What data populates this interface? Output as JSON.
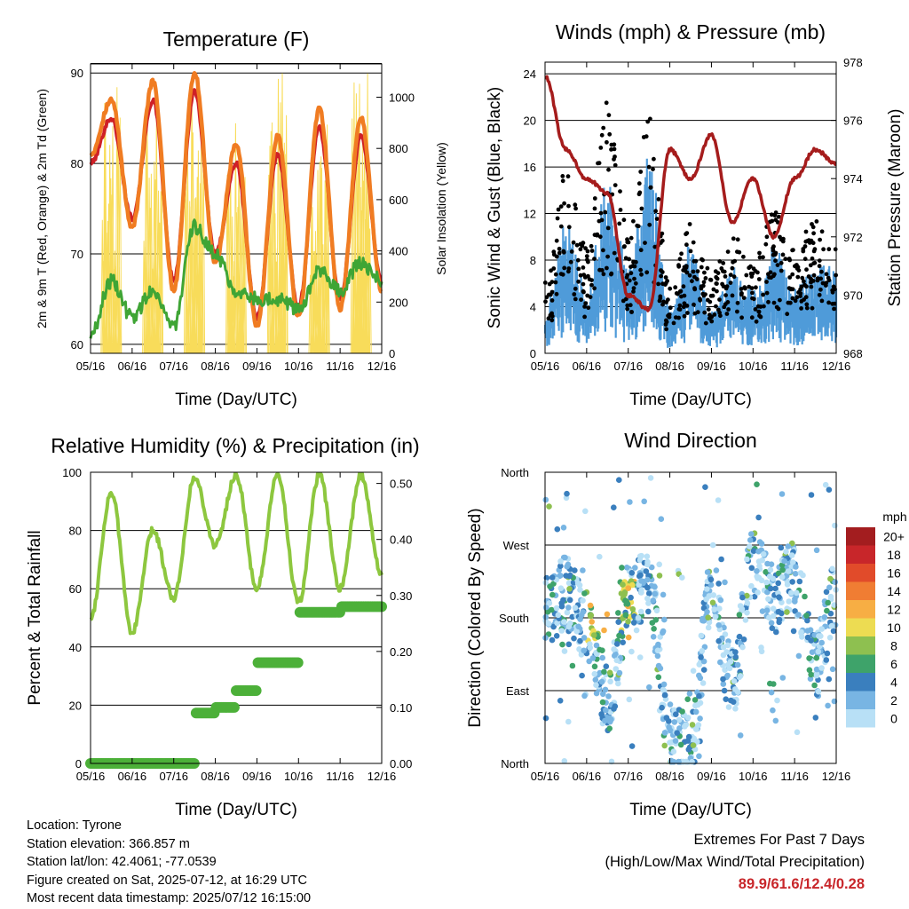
{
  "x_ticks": [
    "05/16",
    "06/16",
    "07/16",
    "08/16",
    "09/16",
    "10/16",
    "11/16",
    "12/16"
  ],
  "x_label": "Time (Day/UTC)",
  "colors": {
    "temp_2m": "#cf2027",
    "temp_9m": "#f07c22",
    "dewpoint": "#3fa535",
    "solar": "#f8dc5a",
    "wind": "#4f9bd9",
    "gust": "#000000",
    "pressure": "#a51c1c",
    "rh": "#8dc73f",
    "precip": "#4cb039"
  },
  "chart_data": [
    {
      "type": "line",
      "title": "Temperature (F)",
      "ylabel": "2m & 9m T (Red, Orange) & 2m Td (Green)",
      "ylabel_right": "Solar Insolation (Yellow)",
      "ylim": [
        59,
        91
      ],
      "yticks": [
        60,
        70,
        80,
        90
      ],
      "ylim_right": [
        0,
        1130
      ],
      "yticks_right": [
        0,
        200,
        400,
        600,
        800,
        1000
      ],
      "x": [
        0,
        0.5,
        1,
        1.5,
        2,
        2.5,
        3,
        3.5,
        4,
        4.5,
        5,
        5.5,
        6,
        6.5,
        7
      ],
      "series": [
        {
          "values": [
            81,
            87,
            73,
            89,
            66,
            90,
            69,
            82,
            62,
            83,
            63,
            86,
            64,
            85,
            66
          ]
        },
        {
          "values": [
            80,
            85,
            74,
            87,
            67,
            88,
            70,
            80,
            63,
            81,
            64,
            84,
            65,
            83,
            67
          ]
        },
        {
          "values": [
            61,
            67,
            63,
            66,
            62,
            73,
            70,
            66,
            65,
            65,
            64,
            68,
            66,
            69,
            67
          ]
        }
      ],
      "grid": true
    },
    {
      "type": "scatter",
      "title": "Winds (mph) & Pressure (mb)",
      "ylabel": "Sonic Wind & Gust (Blue, Black)",
      "ylabel_right": "Station Pressure (Maroon)",
      "ylim": [
        0,
        25
      ],
      "yticks": [
        0,
        4,
        8,
        12,
        16,
        20,
        24
      ],
      "ylim_right": [
        968,
        978
      ],
      "yticks_right": [
        968,
        970,
        972,
        974,
        976,
        978
      ],
      "x": [
        0,
        0.5,
        1,
        1.5,
        2,
        2.5,
        3,
        3.5,
        4,
        4.5,
        5,
        5.5,
        6,
        6.5,
        7
      ],
      "series": [
        {
          "values": [
            2,
            6,
            3,
            8,
            4,
            9,
            2,
            5,
            2,
            4,
            3,
            5,
            3,
            4,
            4
          ]
        },
        {
          "values": [
            6,
            14,
            8,
            19,
            9,
            18,
            5,
            10,
            6,
            9,
            7,
            11,
            8,
            10,
            9
          ]
        },
        {
          "values": [
            977.5,
            975,
            974,
            973.5,
            970,
            969.5,
            975,
            974,
            975.5,
            972.5,
            974,
            972,
            974,
            975,
            974.5
          ]
        }
      ],
      "grid": true
    },
    {
      "type": "line",
      "title": "Relative Humidity (%) & Precipitation (in)",
      "ylabel": "Percent & Total Rainfall",
      "ylim": [
        0,
        100
      ],
      "yticks": [
        0,
        20,
        40,
        60,
        80,
        100
      ],
      "ylim_right": [
        0,
        0.52
      ],
      "yticks_right": [
        "0.00",
        "0.10",
        "0.20",
        "0.30",
        "0.40",
        "0.50"
      ],
      "x": [
        0,
        0.5,
        1,
        1.5,
        2,
        2.5,
        3,
        3.5,
        4,
        4.5,
        5,
        5.5,
        6,
        6.5,
        7
      ],
      "series": [
        {
          "values": [
            50,
            93,
            45,
            80,
            57,
            98,
            75,
            99,
            60,
            99,
            55,
            99,
            60,
            99,
            65
          ]
        },
        {
          "values": [
            0,
            0,
            0,
            0,
            0,
            0.09,
            0.1,
            0.13,
            0.18,
            0.18,
            0.27,
            0.27,
            0.28,
            0.28,
            0.28
          ]
        }
      ],
      "grid": true
    },
    {
      "type": "scatter",
      "title": "Wind Direction",
      "ylabel": "Direction (Colored By Speed)",
      "ytick_labels": [
        "North",
        "East",
        "South",
        "West",
        "North"
      ],
      "ylim": [
        0,
        360
      ],
      "legend_title": "mph",
      "legend_labels": [
        "20+",
        "18",
        "16",
        "14",
        "12",
        "10",
        "8",
        "6",
        "4",
        "2",
        "0"
      ],
      "legend_colors": [
        "#a31d1f",
        "#c8262a",
        "#e14b2a",
        "#f07d33",
        "#f7ae44",
        "#eddc52",
        "#8ec050",
        "#3ea36a",
        "#3a7fbe",
        "#78b5e3",
        "#b8e0f6"
      ],
      "legend_position": "right",
      "x": [
        0,
        0.5,
        1,
        1.5,
        2,
        2.5,
        3,
        3.5,
        4,
        4.5,
        5,
        5.5,
        6,
        6.5,
        7
      ],
      "series": [
        {
          "values": [
            190,
            210,
            170,
            80,
            200,
            220,
            30,
            15,
            210,
            100,
            250,
            200,
            230,
            120,
            210
          ]
        }
      ],
      "grid": true
    }
  ],
  "info": {
    "location": "Location: Tyrone",
    "elevation": "Station elevation: 366.857 m",
    "latlon": "Station lat/lon: 42.4061; -77.0539",
    "created": "Figure created on Sat, 2025-07-12, at 16:29 UTC",
    "recent": "Most recent data timestamp: 2025/07/12 16:15:00"
  },
  "extremes": {
    "heading": "Extremes For Past 7 Days",
    "subheading": "(High/Low/Max Wind/Total Precipitation)",
    "values": "89.9/61.6/12.4/0.28"
  }
}
